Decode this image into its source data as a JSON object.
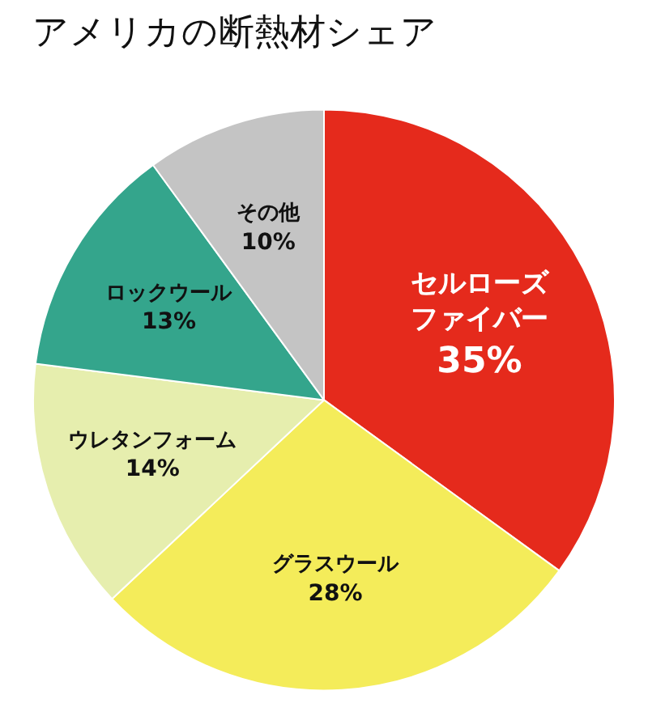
{
  "chart_data": {
    "type": "pie",
    "title": "アメリカの断熱材シェア",
    "categories": [
      "セルローズファイバー",
      "グラスウール",
      "ウレタンフォーム",
      "ロックウール",
      "その他"
    ],
    "values": [
      35,
      28,
      14,
      13,
      10
    ],
    "colors": [
      "#e52a1c",
      "#f4ec5a",
      "#e6eeae",
      "#34a58c",
      "#c4c4c4"
    ],
    "value_labels": [
      "35%",
      "28%",
      "14%",
      "13%",
      "10%"
    ],
    "legend": false
  }
}
